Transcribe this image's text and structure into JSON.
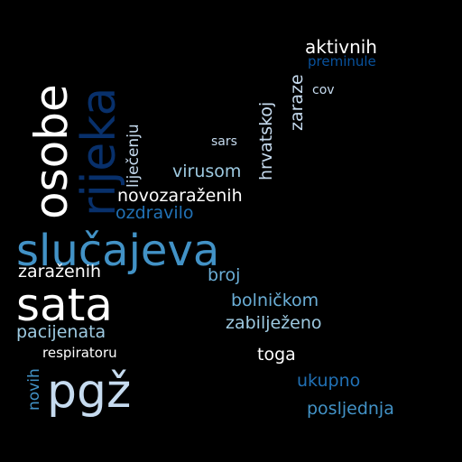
{
  "words": {
    "slucajeva": "slučajeva",
    "sata": "sata",
    "pgz": "pgž",
    "osobe": "osobe",
    "rijeka": "rijeka",
    "aktivnih": "aktivnih",
    "preminule": "preminule",
    "zaraze": "zaraze",
    "cov": "cov",
    "hrvatskoj": "hrvatskoj",
    "sars": "sars",
    "lijecenju": "liječenju",
    "virusom": "virusom",
    "novozarazenih": "novozaraženih",
    "ozdravilo": "ozdravilo",
    "zarazenih": "zaraženih",
    "broj": "broj",
    "bolnickom": "bolničkom",
    "zabiljezeno": "zabilježeno",
    "pacijenata": "pacijenata",
    "respiratoru": "respiratoru",
    "novih": "novih",
    "toga": "toga",
    "ukupno": "ukupno",
    "posljednja": "posljednja"
  },
  "colors": {
    "background": "#000000",
    "white": "#ffffff",
    "pale_blue": "#c6dbef",
    "light_blue": "#9ecae1",
    "mid_blue": "#6baed6",
    "blue": "#4292c6",
    "dark_blue": "#2171b5",
    "deep_blue": "#08519c",
    "navy": "#08306b"
  }
}
